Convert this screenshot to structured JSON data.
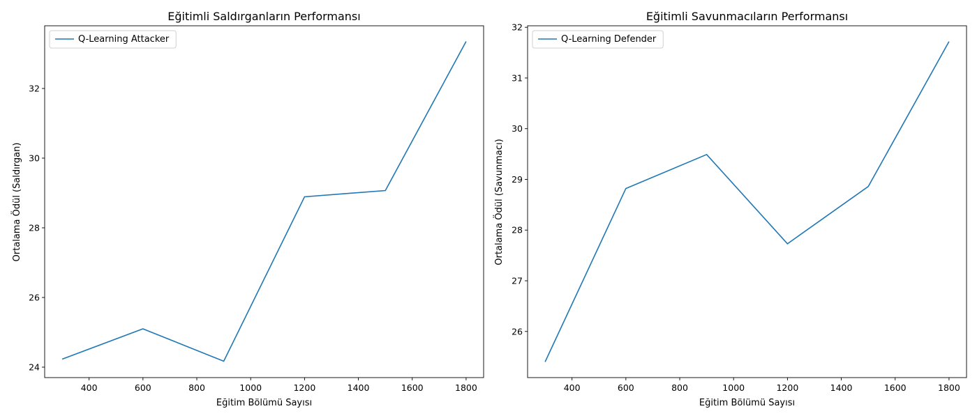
{
  "chart_data": [
    {
      "type": "line",
      "title": "Eğitimli Saldırganların Performansı",
      "xlabel": "Eğitim Bölümü Sayısı",
      "ylabel": "Ortalama Ödül (Saldırgan)",
      "xlim": [
        235,
        1865
      ],
      "ylim": [
        23.7,
        33.8
      ],
      "xticks": [
        400,
        600,
        800,
        1000,
        1200,
        1400,
        1600,
        1800
      ],
      "yticks": [
        24,
        26,
        28,
        30,
        32
      ],
      "grid": false,
      "legend_position": "upper-left",
      "series": [
        {
          "name": "Q-Learning Attacker",
          "color": "#1f77b4",
          "x": [
            300,
            600,
            900,
            1200,
            1500,
            1800
          ],
          "y": [
            24.23,
            25.1,
            24.17,
            28.89,
            29.07,
            33.35
          ]
        }
      ]
    },
    {
      "type": "line",
      "title": "Eğitimli Savunmacıların Performansı",
      "xlabel": "Eğitim Bölümü Sayısı",
      "ylabel": "Ortalama Ödül (Savunmacı)",
      "xlim": [
        235,
        1865
      ],
      "ylim": [
        25.09,
        32.03
      ],
      "xticks": [
        400,
        600,
        800,
        1000,
        1200,
        1400,
        1600,
        1800
      ],
      "yticks": [
        26,
        27,
        28,
        29,
        30,
        31,
        32
      ],
      "grid": false,
      "legend_position": "upper-left",
      "series": [
        {
          "name": "Q-Learning Defender",
          "color": "#1f77b4",
          "x": [
            300,
            600,
            900,
            1200,
            1500,
            1800
          ],
          "y": [
            25.4,
            28.82,
            29.49,
            27.73,
            28.86,
            31.72
          ]
        }
      ]
    }
  ]
}
